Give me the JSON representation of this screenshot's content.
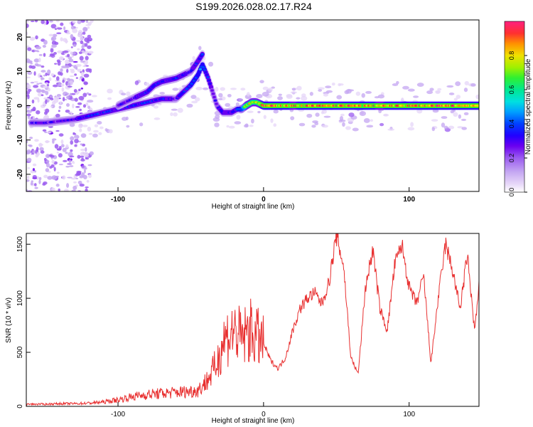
{
  "title": "S199.2026.028.02.17.R24",
  "chart_data": [
    {
      "type": "heatmap",
      "name": "spectrogram",
      "xlabel": "Height of straight line (km)",
      "ylabel": "Frequency (Hz)",
      "xlim": [
        -163,
        148
      ],
      "ylim": [
        -25,
        25
      ],
      "xticks": [
        -100,
        0,
        100
      ],
      "yticks": [
        -20,
        -10,
        0,
        10,
        20
      ],
      "colorbar": {
        "label": "Normalized spectral amplitude",
        "range": [
          0,
          1
        ],
        "ticks": [
          "0.0",
          "0.2",
          "0.4",
          "0.6",
          "0.8"
        ],
        "colormap": [
          "#ffffff",
          "#e6d6f8",
          "#c4a6f2",
          "#9b5cf0",
          "#6a00f0",
          "#2200ff",
          "#0040ff",
          "#00a0ff",
          "#00e0e0",
          "#00e890",
          "#30f030",
          "#a0f000",
          "#f0e000",
          "#ff9000",
          "#ff3030",
          "#ff2080"
        ]
      },
      "ridge": {
        "x": [
          -160,
          -150,
          -140,
          -130,
          -120,
          -110,
          -100,
          -90,
          -80,
          -70,
          -60,
          -55,
          -50,
          -45,
          -42,
          -38,
          -35,
          -32,
          -28,
          -25,
          -22,
          -18,
          -15,
          -12,
          -8,
          -5,
          0,
          10,
          20,
          40,
          60,
          80,
          100,
          120,
          140,
          148
        ],
        "freq": [
          -5,
          -5,
          -4.5,
          -4,
          -3,
          -2,
          -1,
          0,
          1,
          2,
          2,
          4,
          6,
          9,
          12,
          8,
          4,
          0,
          -2,
          -2,
          -2,
          -1,
          -1,
          0,
          1,
          1,
          0,
          0,
          0,
          0,
          0,
          0,
          0,
          0,
          0,
          0
        ],
        "amplitude": [
          0.3,
          0.3,
          0.3,
          0.3,
          0.35,
          0.35,
          0.35,
          0.35,
          0.4,
          0.35,
          0.3,
          0.35,
          0.4,
          0.4,
          0.45,
          0.35,
          0.3,
          0.3,
          0.35,
          0.35,
          0.35,
          0.4,
          0.5,
          0.8,
          0.8,
          0.8,
          0.9,
          0.9,
          0.85,
          0.9,
          0.9,
          0.85,
          0.9,
          0.9,
          0.9,
          0.9
        ]
      },
      "branch": {
        "x": [
          -100,
          -90,
          -80,
          -75,
          -70,
          -60,
          -50,
          -45,
          -42
        ],
        "freq": [
          0,
          2,
          4,
          6,
          7,
          8,
          10,
          13,
          15
        ],
        "amplitude": [
          0.3,
          0.3,
          0.35,
          0.35,
          0.35,
          0.35,
          0.3,
          0.35,
          0.35
        ]
      }
    },
    {
      "type": "line",
      "name": "snr",
      "xlabel": "Height of straight line (km)",
      "ylabel": "SNR (10 * v/v)",
      "xlim": [
        -163,
        148
      ],
      "ylim": [
        0,
        1600
      ],
      "xticks": [
        -100,
        0,
        100
      ],
      "yticks": [
        0,
        500,
        1000,
        1500
      ],
      "color": "#e83030",
      "series": [
        {
          "name": "SNR",
          "x": [
            -163,
            -150,
            -140,
            -130,
            -120,
            -110,
            -100,
            -90,
            -80,
            -70,
            -60,
            -50,
            -45,
            -40,
            -35,
            -32,
            -30,
            -28,
            -25,
            -20,
            -15,
            -10,
            -5,
            0,
            5,
            10,
            15,
            20,
            25,
            30,
            35,
            40,
            45,
            50,
            55,
            60,
            65,
            70,
            75,
            80,
            85,
            90,
            95,
            100,
            105,
            110,
            115,
            120,
            125,
            130,
            135,
            140,
            145,
            148
          ],
          "y": [
            20,
            20,
            25,
            25,
            30,
            40,
            60,
            90,
            110,
            120,
            130,
            140,
            150,
            220,
            320,
            400,
            500,
            600,
            650,
            700,
            620,
            700,
            650,
            580,
            420,
            350,
            450,
            700,
            900,
            1000,
            1050,
            950,
            1150,
            1580,
            1300,
            450,
            300,
            1100,
            1450,
            900,
            700,
            1300,
            1500,
            1100,
            950,
            1200,
            400,
            1000,
            1500,
            1250,
            900,
            1400,
            700,
            1100
          ]
        }
      ]
    }
  ]
}
